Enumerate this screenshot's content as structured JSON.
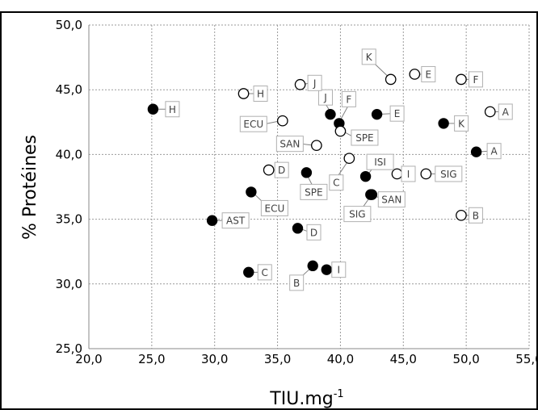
{
  "chart_data": {
    "type": "scatter",
    "xlabel": "TIU.mg",
    "xlabel_sup": "-1",
    "ylabel": "% Protéines",
    "xlim": [
      20,
      55
    ],
    "ylim": [
      25,
      50
    ],
    "x_ticks": [
      "20,0",
      "25,0",
      "30,0",
      "35,0",
      "40,0",
      "45,0",
      "50,0",
      "55,0"
    ],
    "y_ticks": [
      "25,0",
      "30,0",
      "35,0",
      "40,0",
      "45,0",
      "50,0"
    ],
    "grid": true,
    "series": [
      {
        "marker": "filled",
        "points": [
          {
            "label": "H",
            "x": 25.1,
            "y": 43.5
          },
          {
            "label": "J",
            "x": 39.2,
            "y": 43.1
          },
          {
            "label": "F",
            "x": 39.9,
            "y": 42.4
          },
          {
            "label": "E",
            "x": 42.9,
            "y": 43.1
          },
          {
            "label": "K",
            "x": 48.2,
            "y": 42.4
          },
          {
            "label": "A",
            "x": 50.8,
            "y": 40.2
          },
          {
            "label": "SPE",
            "x": 37.3,
            "y": 38.6
          },
          {
            "label": "ISI",
            "x": 42.0,
            "y": 38.3
          },
          {
            "label": "ECU",
            "x": 32.9,
            "y": 37.1
          },
          {
            "label": "SAN",
            "x": 42.4,
            "y": 36.9
          },
          {
            "label": "AST",
            "x": 29.8,
            "y": 34.9
          },
          {
            "label": "D",
            "x": 36.6,
            "y": 34.3
          },
          {
            "label": "C",
            "x": 32.7,
            "y": 30.9
          },
          {
            "label": "B",
            "x": 37.8,
            "y": 31.4
          },
          {
            "label": "I",
            "x": 38.9,
            "y": 31.1
          }
        ]
      },
      {
        "marker": "open",
        "points": [
          {
            "label": "K",
            "x": 44.0,
            "y": 45.8
          },
          {
            "label": "E",
            "x": 45.9,
            "y": 46.2
          },
          {
            "label": "F",
            "x": 49.6,
            "y": 45.8
          },
          {
            "label": "H",
            "x": 32.3,
            "y": 44.7
          },
          {
            "label": "J",
            "x": 36.8,
            "y": 45.4
          },
          {
            "label": "A",
            "x": 51.9,
            "y": 43.3
          },
          {
            "label": "ECU",
            "x": 35.4,
            "y": 42.6
          },
          {
            "label": "SPE",
            "x": 40.0,
            "y": 41.8
          },
          {
            "label": "SAN",
            "x": 38.1,
            "y": 40.7
          },
          {
            "label": "C",
            "x": 40.7,
            "y": 39.7
          },
          {
            "label": "D",
            "x": 34.3,
            "y": 38.8
          },
          {
            "label": "I",
            "x": 44.5,
            "y": 38.5
          },
          {
            "label": "SIG",
            "x": 46.8,
            "y": 38.5
          },
          {
            "label": "B",
            "x": 49.6,
            "y": 35.3
          }
        ]
      },
      {
        "marker": "filled",
        "points": [
          {
            "label": "SIG",
            "x": 42.5,
            "y": 36.9
          }
        ]
      }
    ]
  }
}
